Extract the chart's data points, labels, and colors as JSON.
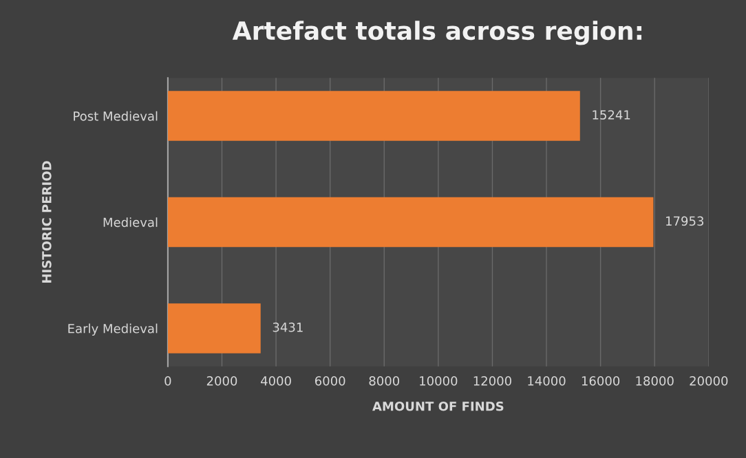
{
  "chart_data": {
    "type": "bar",
    "orientation": "horizontal",
    "title": "Artefact totals across region:",
    "xlabel": "AMOUNT OF FINDS",
    "ylabel": "HISTORIC PERIOD",
    "categories": [
      "Post Medieval",
      "Medieval",
      "Early Medieval"
    ],
    "values": [
      15241,
      17953,
      3431
    ],
    "color": "#ed7d31",
    "xlim": [
      0,
      20000
    ],
    "xticks": [
      0,
      2000,
      4000,
      6000,
      8000,
      10000,
      12000,
      14000,
      16000,
      18000,
      20000
    ],
    "grid": "x",
    "data_labels": true
  }
}
